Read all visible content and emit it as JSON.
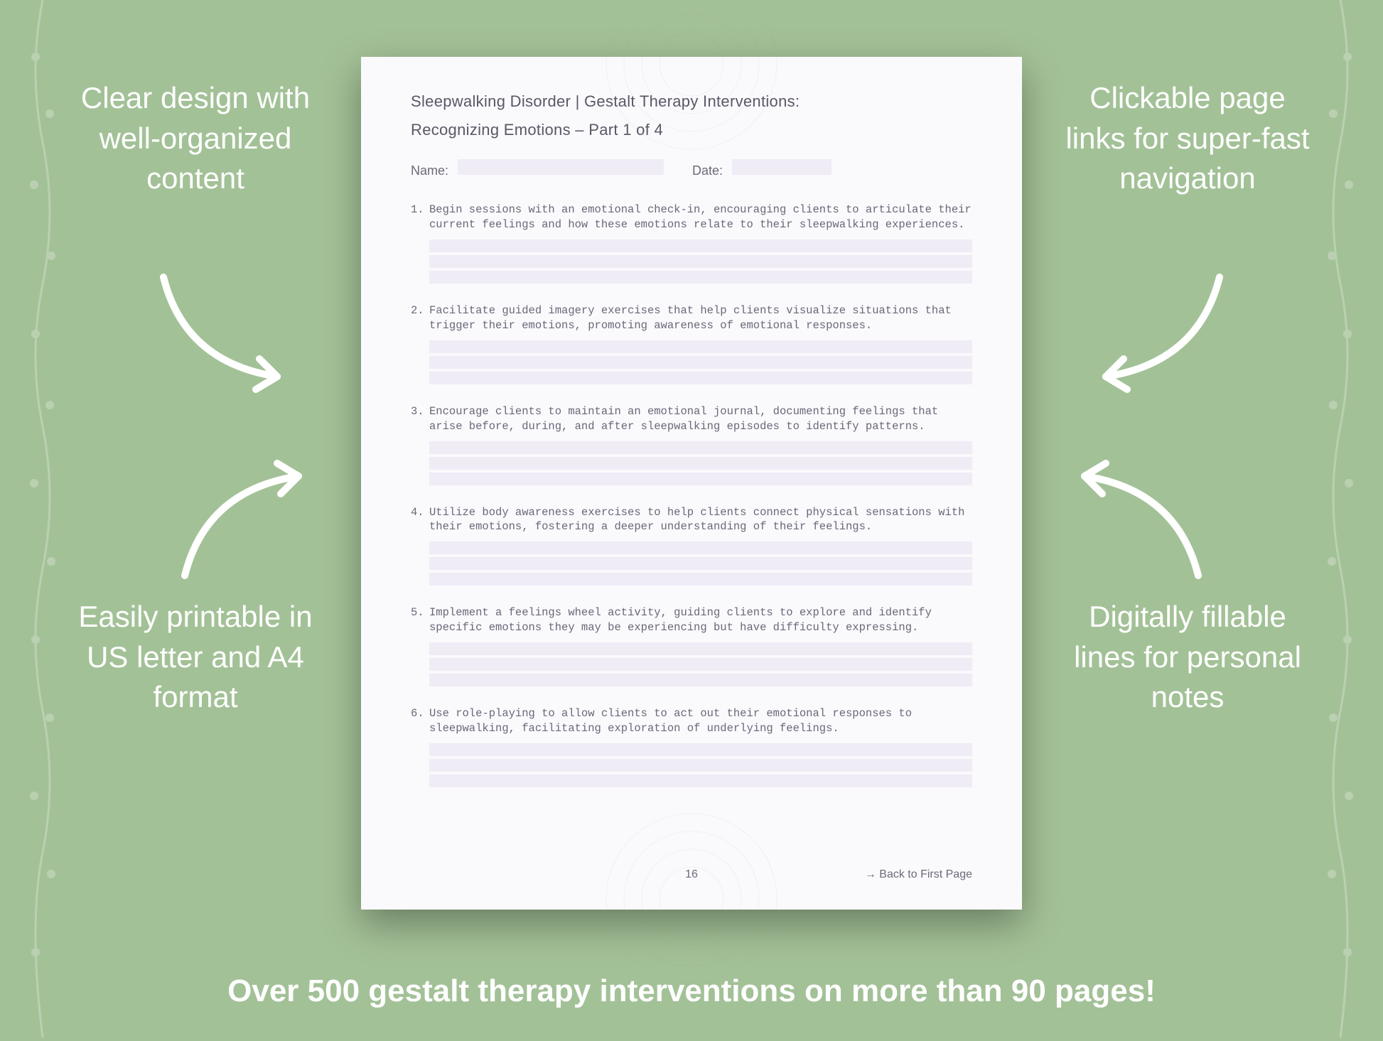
{
  "background_color": "#a3c197",
  "page_bg": "#faf9fc",
  "field_bg": "#f0ecf6",
  "text_color": "#6b6878",
  "callout_color": "#ffffff",
  "page": {
    "title_line1": "Sleepwalking Disorder | Gestalt Therapy Interventions:",
    "title_line2": "Recognizing Emotions  – Part 1 of 4",
    "name_label": "Name:",
    "date_label": "Date:",
    "page_number": "16",
    "back_link": "→ Back to First Page",
    "title_fontsize": 22,
    "body_font": "Courier New",
    "body_fontsize": 15.5
  },
  "items": [
    {
      "num": "1.",
      "text": "Begin sessions with an emotional check-in, encouraging clients to articulate their current feelings and how these emotions relate to their sleepwalking experiences."
    },
    {
      "num": "2.",
      "text": "Facilitate guided imagery exercises that help clients visualize situations that trigger their emotions, promoting awareness of emotional responses."
    },
    {
      "num": "3.",
      "text": "Encourage clients to maintain an emotional journal, documenting feelings that arise before, during, and after sleepwalking episodes to identify patterns."
    },
    {
      "num": "4.",
      "text": "Utilize body awareness exercises to help clients connect physical sensations with their emotions, fostering a deeper understanding of their feelings."
    },
    {
      "num": "5.",
      "text": "Implement a feelings wheel activity, guiding clients to explore and identify specific emotions they may be experiencing but have difficulty expressing."
    },
    {
      "num": "6.",
      "text": "Use role-playing to allow clients to act out their emotional responses to sleepwalking, facilitating exploration of underlying feelings."
    }
  ],
  "lines_per_item": 3,
  "callouts": {
    "top_left": "Clear design with well-organized content",
    "top_right": "Clickable page links for super-fast navigation",
    "bottom_left": "Easily printable in US letter and A4 format",
    "bottom_right": "Digitally fillable lines for personal notes"
  },
  "callout_fontsize": 42,
  "bottom_banner": "Over 500 gestalt therapy interventions on more than 90 pages!",
  "banner_fontsize": 44
}
